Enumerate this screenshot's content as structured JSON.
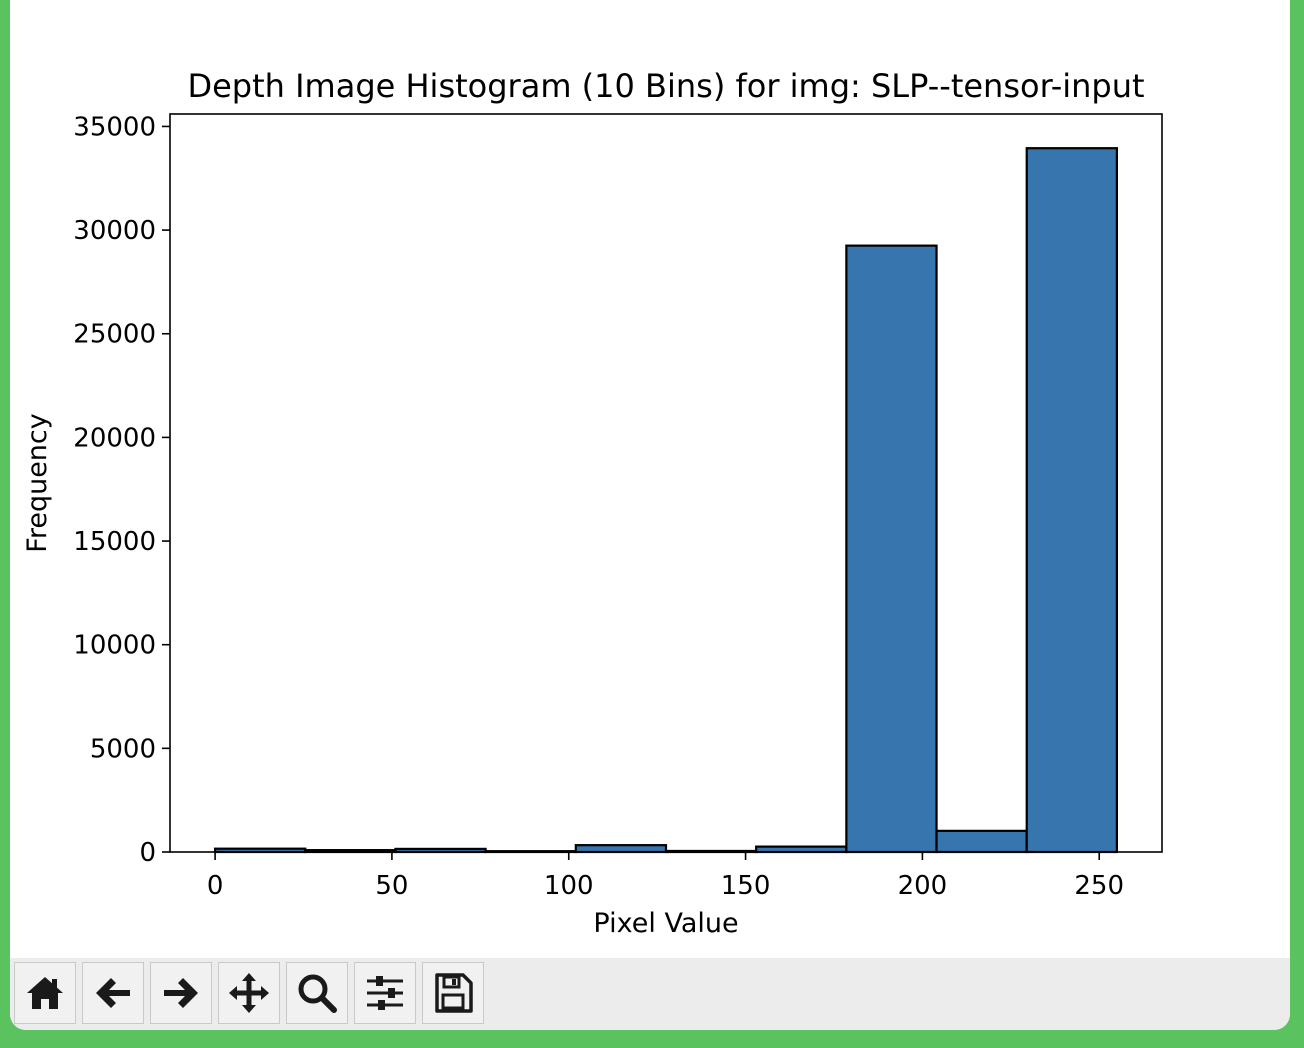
{
  "chart_data": {
    "type": "bar",
    "title": "Depth Image Histogram (10 Bins) for img: SLP--tensor-input",
    "xlabel": "Pixel Value",
    "ylabel": "Frequency",
    "xlim": [
      -12.75,
      267.75
    ],
    "ylim": [
      0,
      35600
    ],
    "xticks": [
      0,
      50,
      100,
      150,
      200,
      250
    ],
    "yticks": [
      0,
      5000,
      10000,
      15000,
      20000,
      25000,
      30000,
      35000
    ],
    "bin_edges": [
      0,
      25.5,
      51,
      76.5,
      102,
      127.5,
      153,
      178.5,
      204,
      229.5,
      255
    ],
    "values": [
      160,
      90,
      150,
      40,
      330,
      50,
      260,
      29250,
      1020,
      33950
    ],
    "bar_color": "#3775ae",
    "edge_color": "#000000",
    "grid": false
  },
  "toolbar": {
    "buttons": [
      {
        "name": "home-button",
        "icon": "home-icon"
      },
      {
        "name": "back-button",
        "icon": "arrow-left-icon"
      },
      {
        "name": "forward-button",
        "icon": "arrow-right-icon"
      },
      {
        "name": "pan-button",
        "icon": "move-icon"
      },
      {
        "name": "zoom-button",
        "icon": "magnifier-icon"
      },
      {
        "name": "configure-subplots-button",
        "icon": "sliders-icon"
      },
      {
        "name": "save-button",
        "icon": "floppy-disk-icon"
      }
    ]
  }
}
